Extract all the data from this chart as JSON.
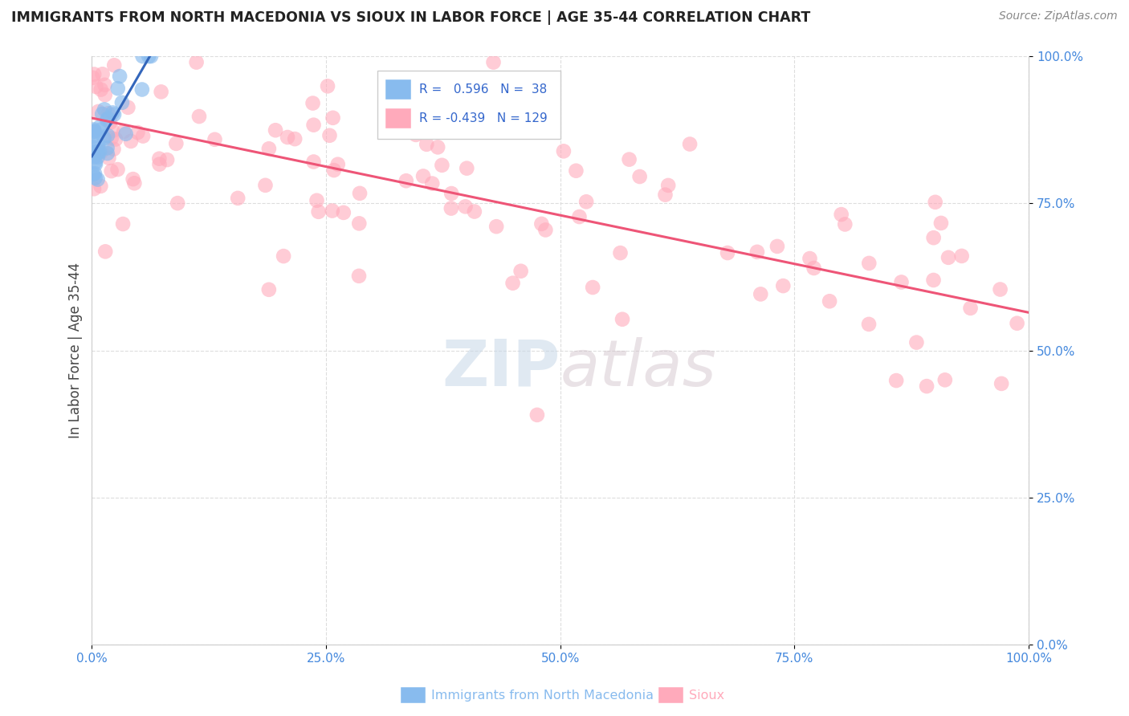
{
  "title": "IMMIGRANTS FROM NORTH MACEDONIA VS SIOUX IN LABOR FORCE | AGE 35-44 CORRELATION CHART",
  "source": "Source: ZipAtlas.com",
  "ylabel": "In Labor Force | Age 35-44",
  "xlim": [
    0,
    1
  ],
  "ylim": [
    0,
    1
  ],
  "xticks": [
    0.0,
    0.25,
    0.5,
    0.75,
    1.0
  ],
  "yticks": [
    0.0,
    0.25,
    0.5,
    0.75,
    1.0
  ],
  "xtick_labels": [
    "0.0%",
    "25.0%",
    "50.0%",
    "75.0%",
    "100.0%"
  ],
  "ytick_labels": [
    "0.0%",
    "25.0%",
    "50.0%",
    "75.0%",
    "100.0%"
  ],
  "blue_color": "#88bbee",
  "blue_edge_color": "#5599cc",
  "pink_color": "#ffaabb",
  "pink_edge_color": "#ee88aa",
  "blue_line_color": "#3366bb",
  "pink_line_color": "#ee5577",
  "blue_R": 0.596,
  "blue_N": 38,
  "pink_R": -0.439,
  "pink_N": 129,
  "legend_label_blue": "Immigrants from North Macedonia",
  "legend_label_pink": "Sioux",
  "watermark_zip": "ZIP",
  "watermark_atlas": "atlas",
  "tick_color": "#4488dd",
  "grid_color": "#dddddd",
  "spine_color": "#cccccc"
}
